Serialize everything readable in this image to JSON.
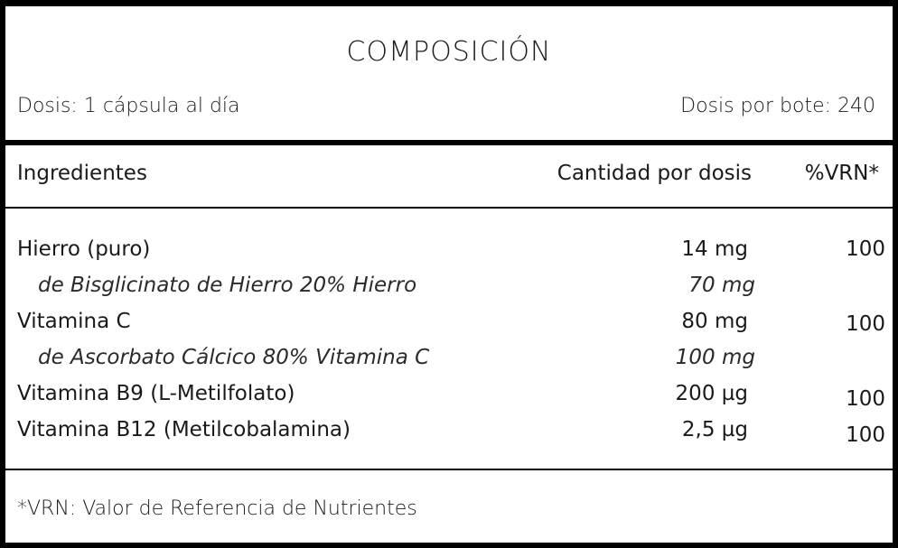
{
  "header": {
    "title": "COMPOSICIÓN",
    "dose": "Dosis: 1 cápsula al día",
    "dose_per_bottle": "Dosis por bote: 240"
  },
  "table": {
    "columns": [
      "Ingredientes",
      "Cantidad por dosis",
      "%VRN*"
    ],
    "rows": [
      {
        "name": "Hierro (puro)",
        "quantity": "14 mg",
        "vrn": "100"
      },
      {
        "name": "de Bisglicinato de Hierro 20% Hierro",
        "quantity": "70 mg",
        "vrn": ""
      },
      {
        "name": "Vitamina C",
        "quantity": "80 mg",
        "vrn": "100"
      },
      {
        "name": "de Ascorbato Cálcico 80% Vitamina C",
        "quantity": "100 mg",
        "vrn": ""
      },
      {
        "name": "Vitamina B9 (L-Metilfolato)",
        "quantity": "200 µg",
        "vrn": "100"
      },
      {
        "name": "Vitamina B12 (Metilcobalamina)",
        "quantity": "2,5 µg",
        "vrn": "100"
      }
    ]
  },
  "footnote": "*VRN: Valor de Referencia de Nutrientes"
}
